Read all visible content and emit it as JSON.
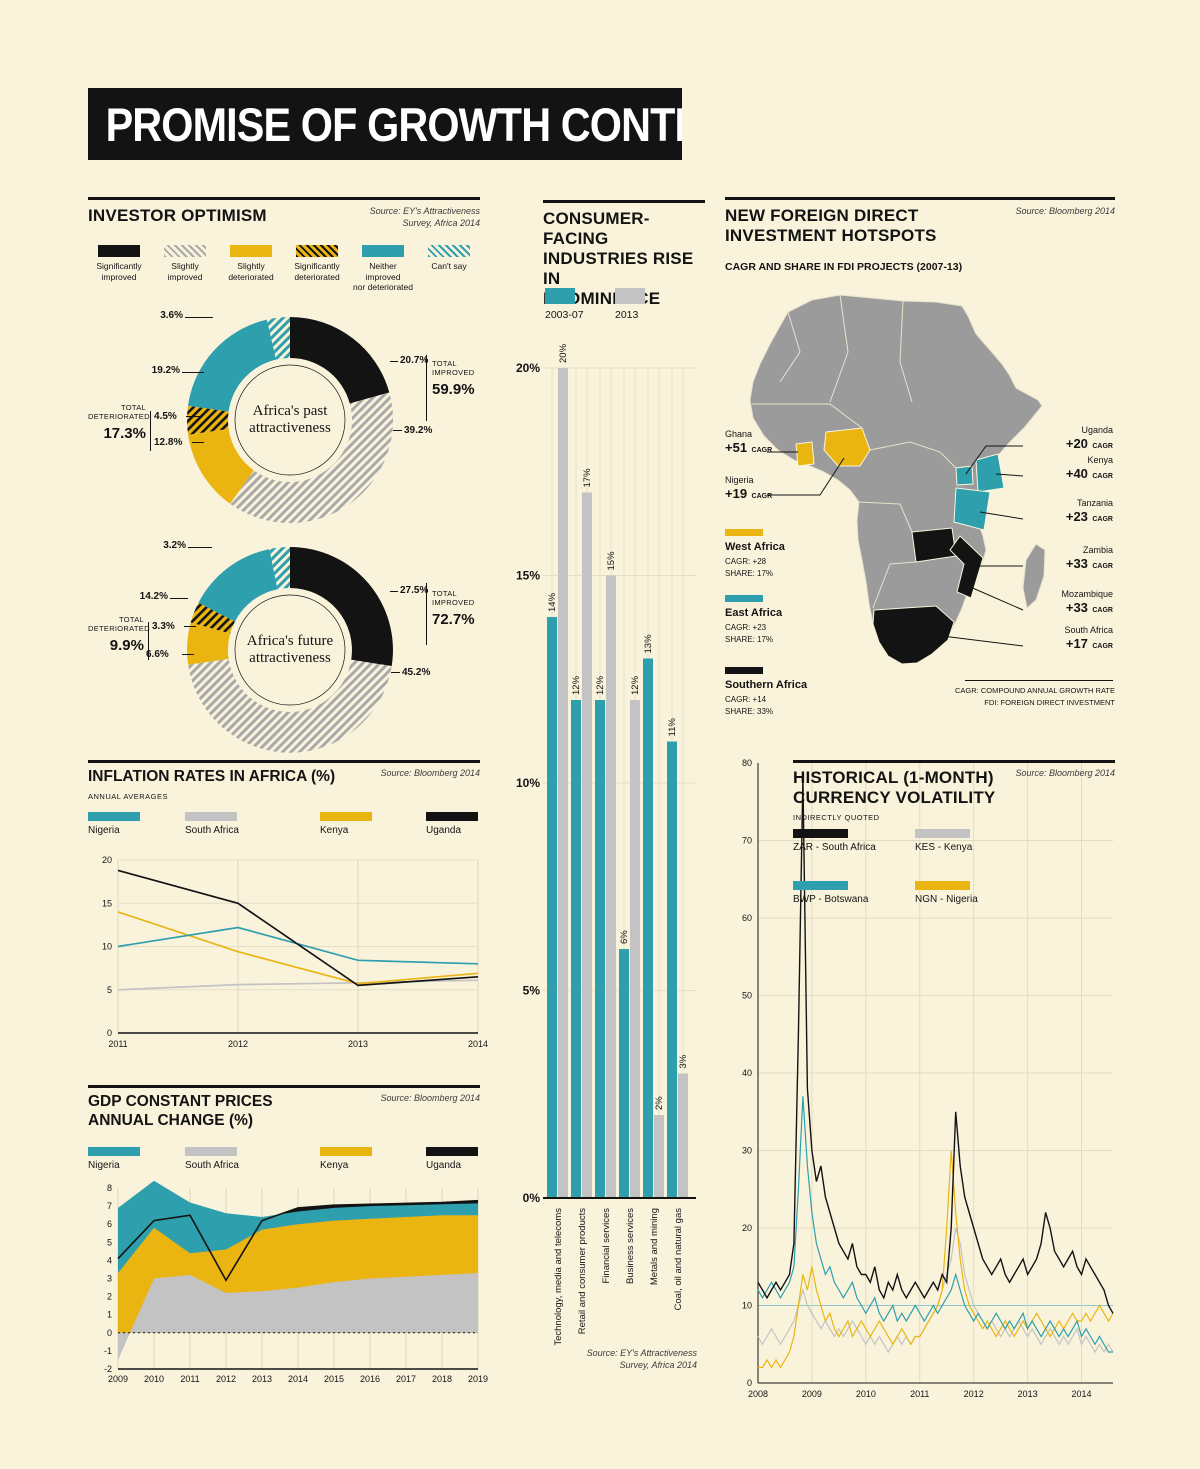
{
  "page": {
    "title": "PROMISE OF GROWTH CONTINENT"
  },
  "colors": {
    "teal": "#2d9fad",
    "yellow": "#eab511",
    "gray": "#c3c3c3",
    "black": "#131313",
    "map_gray": "#9b9b9b",
    "bg": "#faf3dc"
  },
  "investor": {
    "title": "INVESTOR OPTIMISM",
    "source_l1": "Source: EY's Attractiveness",
    "source_l2": "Survey, Africa 2014",
    "legend": [
      {
        "l1": "Significantly",
        "l2": "improved",
        "style": "black"
      },
      {
        "l1": "Slightly",
        "l2": "improved",
        "style": "gray-stripe"
      },
      {
        "l1": "Slightly",
        "l2": "deteriorated",
        "style": "yellow"
      },
      {
        "l1": "Significantly",
        "l2": "deteriorated",
        "style": "yellow-stripe"
      },
      {
        "l1": "Neither improved",
        "l2": "nor deteriorated",
        "style": "teal"
      },
      {
        "l1": "Can't say",
        "l2": "",
        "style": "teal-stripe"
      }
    ]
  },
  "consumer": {
    "title_l1": "CONSUMER-FACING",
    "title_l2": "INDUSTRIES RISE IN",
    "title_l3": "PROMINENCE",
    "legend": [
      {
        "label": "2003-07",
        "style": "teal"
      },
      {
        "label": "2013",
        "style": "gray"
      }
    ],
    "source_l1": "Source: EY's Attractiveness",
    "source_l2": "Survey, Africa 2014"
  },
  "fdi": {
    "title_l1": "NEW FOREIGN DIRECT",
    "title_l2": "INVESTMENT HOTSPOTS",
    "source": "Source: Bloomberg 2014",
    "subtitle": "CAGR AND SHARE IN FDI PROJECTS (2007-13)",
    "cagr_unit": "CAGR",
    "countries_right": [
      {
        "name": "Uganda",
        "value": "+20"
      },
      {
        "name": "Kenya",
        "value": "+40"
      },
      {
        "name": "Tanzania",
        "value": "+23"
      },
      {
        "name": "Zambia",
        "value": "+33"
      },
      {
        "name": "Mozambique",
        "value": "+33"
      },
      {
        "name": "South Africa",
        "value": "+17"
      }
    ],
    "countries_left": [
      {
        "name": "Ghana",
        "value": "+51"
      },
      {
        "name": "Nigeria",
        "value": "+19"
      }
    ],
    "regions": [
      {
        "name": "West Africa",
        "cagr": "CAGR: +28",
        "share": "SHARE: 17%",
        "style": "yellow"
      },
      {
        "name": "East Africa",
        "cagr": "CAGR: +23",
        "share": "SHARE: 17%",
        "style": "teal"
      },
      {
        "name": "Southern Africa",
        "cagr": "CAGR: +14",
        "share": "SHARE: 33%",
        "style": "black"
      }
    ],
    "footnote_l1": "CAGR: COMPOUND ANNUAL GROWTH RATE",
    "footnote_l2": "FDI: FOREIGN DIRECT INVESTMENT"
  },
  "inflation": {
    "title": "INFLATION RATES IN AFRICA (%)",
    "subtitle": "ANNUAL AVERAGES",
    "source": "Source: Bloomberg 2014",
    "legend": [
      {
        "label": "Nigeria",
        "style": "teal"
      },
      {
        "label": "South Africa",
        "style": "gray"
      },
      {
        "label": "Kenya",
        "style": "yellow"
      },
      {
        "label": "Uganda",
        "style": "black"
      }
    ]
  },
  "gdp": {
    "title_l1": "GDP CONSTANT PRICES",
    "title_l2": "ANNUAL CHANGE (%)",
    "source": "Source: Bloomberg 2014",
    "legend": [
      {
        "label": "Nigeria",
        "style": "teal"
      },
      {
        "label": "South Africa",
        "style": "gray"
      },
      {
        "label": "Kenya",
        "style": "yellow"
      },
      {
        "label": "Uganda",
        "style": "black"
      }
    ]
  },
  "fx": {
    "title_l1": "HISTORICAL (1-MONTH)",
    "title_l2": "CURRENCY VOLATILITY",
    "subtitle": "INDIRECTLY QUOTED",
    "source": "Source: Bloomberg 2014",
    "legend": [
      {
        "label": "ZAR - South Africa",
        "style": "black"
      },
      {
        "label": "KES - Kenya",
        "style": "gray"
      },
      {
        "label": "BWP - Botswana",
        "style": "teal"
      },
      {
        "label": "NGN - Nigeria",
        "style": "yellow"
      }
    ]
  },
  "chart_data": [
    {
      "id": "donut_past",
      "type": "pie",
      "title_l1": "Africa's past",
      "title_l2": "attractiveness",
      "segments": [
        {
          "label": "Significantly improved",
          "style": "black",
          "value": 20.7,
          "display": "20.7%"
        },
        {
          "label": "Slightly improved",
          "style": "gray-stripe",
          "value": 39.2,
          "display": "39.2%"
        },
        {
          "label": "Slightly deteriorated",
          "style": "yellow",
          "value": 12.8,
          "display": "12.8%"
        },
        {
          "label": "Significantly deteriorated",
          "style": "yellow-stripe",
          "value": 4.5,
          "display": "4.5%"
        },
        {
          "label": "Neither improved nor deteriorated",
          "style": "teal",
          "value": 19.2,
          "display": "19.2%"
        },
        {
          "label": "Can't say",
          "style": "teal-stripe",
          "value": 3.6,
          "display": "3.6%"
        }
      ],
      "totals": {
        "improved_l1": "TOTAL",
        "improved_l2": "IMPROVED",
        "improved_value": "59.9%",
        "det_l1": "TOTAL",
        "det_l2": "DETERIORATED",
        "det_value": "17.3%"
      }
    },
    {
      "id": "donut_future",
      "type": "pie",
      "title_l1": "Africa's future",
      "title_l2": "attractiveness",
      "segments": [
        {
          "label": "Significantly improved",
          "style": "black",
          "value": 27.5,
          "display": "27.5%"
        },
        {
          "label": "Slightly improved",
          "style": "gray-stripe",
          "value": 45.2,
          "display": "45.2%"
        },
        {
          "label": "Slightly deteriorated",
          "style": "yellow",
          "value": 6.6,
          "display": "6.6%"
        },
        {
          "label": "Significantly deteriorated",
          "style": "yellow-stripe",
          "value": 3.3,
          "display": "3.3%"
        },
        {
          "label": "Neither improved nor deteriorated",
          "style": "teal",
          "value": 14.2,
          "display": "14.2%"
        },
        {
          "label": "Can't say",
          "style": "teal-stripe",
          "value": 3.2,
          "display": "3.2%"
        }
      ],
      "totals": {
        "improved_l1": "TOTAL",
        "improved_l2": "IMPROVED",
        "improved_value": "72.7%",
        "det_l1": "TOTAL",
        "det_l2": "DETERIORATED",
        "det_value": "9.9%"
      }
    },
    {
      "id": "consumer",
      "type": "bar",
      "categories": [
        "Technology, media and telecoms",
        "Retail and consumer products",
        "Financial services",
        "Business services",
        "Metals and mining",
        "Coal, oil and natural gas"
      ],
      "series": [
        {
          "name": "2003-07",
          "color": "teal",
          "values": [
            14,
            12,
            12,
            6,
            13,
            11
          ]
        },
        {
          "name": "2013",
          "color": "gray",
          "values": [
            20,
            17,
            15,
            12,
            2,
            3
          ]
        }
      ],
      "ylim": [
        0,
        20
      ],
      "yticks": [
        {
          "v": 20,
          "label": "20%"
        },
        {
          "v": 15,
          "label": "15%"
        },
        {
          "v": 10,
          "label": "10%"
        },
        {
          "v": 5,
          "label": "5%"
        },
        {
          "v": 0,
          "label": "0%"
        }
      ]
    },
    {
      "id": "inflation",
      "type": "line",
      "x": [
        2011,
        2012,
        2013,
        2014
      ],
      "yticks": [
        20,
        15,
        10,
        5,
        0
      ],
      "ylim": [
        0,
        20
      ],
      "series": [
        {
          "name": "South Africa",
          "color": "gray",
          "values": [
            5.0,
            5.6,
            5.8,
            6.1
          ]
        },
        {
          "name": "Kenya",
          "color": "yellow",
          "values": [
            14.0,
            9.4,
            5.7,
            6.9
          ]
        },
        {
          "name": "Nigeria",
          "color": "teal",
          "values": [
            10.0,
            12.2,
            8.4,
            8.0
          ]
        },
        {
          "name": "Uganda",
          "color": "black",
          "values": [
            18.8,
            15.0,
            5.5,
            6.5
          ]
        }
      ]
    },
    {
      "id": "gdp",
      "type": "area",
      "x": [
        2009,
        2010,
        2011,
        2012,
        2013,
        2014,
        2015,
        2016,
        2017,
        2018,
        2019
      ],
      "yticks": [
        8,
        7,
        6,
        5,
        4,
        3,
        2,
        1,
        0,
        -1,
        -2
      ],
      "ylim": [
        -2,
        8
      ],
      "series": [
        {
          "name": "Uganda",
          "color": "black",
          "values": [
            4.1,
            6.2,
            6.5,
            2.9,
            6.2,
            6.9,
            7.05,
            7.1,
            7.15,
            7.2,
            7.3
          ]
        },
        {
          "name": "Nigeria",
          "color": "teal",
          "values": [
            6.9,
            8.4,
            7.2,
            6.6,
            6.4,
            6.7,
            6.9,
            7.0,
            7.05,
            7.1,
            7.15
          ]
        },
        {
          "name": "Kenya",
          "color": "yellow",
          "values": [
            3.3,
            5.8,
            4.4,
            4.6,
            5.7,
            6.0,
            6.2,
            6.3,
            6.4,
            6.5,
            6.5
          ]
        },
        {
          "name": "South Africa",
          "color": "gray",
          "values": [
            -1.5,
            3.0,
            3.2,
            2.2,
            2.3,
            2.5,
            2.8,
            3.0,
            3.1,
            3.2,
            3.3
          ]
        }
      ]
    },
    {
      "id": "fx",
      "type": "line",
      "x_years": [
        2008,
        2009,
        2010,
        2011,
        2012,
        2013,
        2014
      ],
      "yticks": [
        80,
        70,
        60,
        50,
        40,
        30,
        20,
        10,
        0
      ],
      "ylim": [
        0,
        80
      ],
      "series": [
        {
          "name": "KES",
          "color": "gray",
          "values": [
            6,
            5,
            6,
            7,
            6,
            5,
            6,
            7,
            8,
            10,
            12,
            10,
            9,
            8,
            7,
            8,
            7,
            6,
            7,
            6,
            7,
            8,
            7,
            6,
            5,
            6,
            5,
            6,
            5,
            4,
            5,
            6,
            5,
            6,
            5,
            6,
            6,
            7,
            8,
            9,
            10,
            12,
            14,
            16,
            20,
            18,
            14,
            12,
            10,
            9,
            8,
            7,
            8,
            7,
            6,
            7,
            6,
            7,
            8,
            7,
            6,
            7,
            6,
            5,
            6,
            7,
            6,
            5,
            6,
            5,
            6,
            7,
            5,
            6,
            5,
            4,
            5,
            4,
            5,
            4
          ]
        },
        {
          "name": "NGN",
          "color": "yellow",
          "values": [
            2,
            2,
            3,
            2,
            3,
            2,
            3,
            4,
            6,
            10,
            14,
            12,
            15,
            12,
            10,
            8,
            9,
            7,
            6,
            7,
            8,
            6,
            7,
            8,
            7,
            6,
            7,
            8,
            7,
            6,
            5,
            6,
            7,
            6,
            5,
            6,
            6,
            7,
            8,
            9,
            10,
            12,
            20,
            30,
            22,
            16,
            12,
            10,
            9,
            8,
            7,
            8,
            7,
            6,
            7,
            8,
            7,
            6,
            7,
            8,
            7,
            8,
            9,
            8,
            7,
            6,
            7,
            8,
            7,
            8,
            9,
            8,
            8,
            9,
            8,
            9,
            10,
            9,
            8,
            9
          ]
        },
        {
          "name": "BWP",
          "color": "teal",
          "values": [
            12,
            11,
            12,
            13,
            12,
            11,
            12,
            13,
            15,
            25,
            37,
            28,
            22,
            18,
            16,
            14,
            15,
            13,
            12,
            11,
            12,
            13,
            11,
            10,
            9,
            10,
            11,
            9,
            8,
            9,
            10,
            8,
            9,
            8,
            9,
            10,
            9,
            8,
            9,
            10,
            9,
            10,
            11,
            12,
            14,
            12,
            10,
            9,
            8,
            9,
            8,
            7,
            8,
            9,
            8,
            7,
            8,
            7,
            8,
            9,
            7,
            8,
            7,
            6,
            7,
            8,
            7,
            6,
            7,
            6,
            7,
            8,
            6,
            7,
            6,
            5,
            6,
            5,
            4,
            4
          ]
        },
        {
          "name": "ZAR",
          "color": "black",
          "values": [
            13,
            12,
            11,
            12,
            13,
            12,
            13,
            14,
            18,
            45,
            78,
            38,
            30,
            26,
            28,
            24,
            22,
            20,
            18,
            17,
            16,
            18,
            15,
            14,
            14,
            13,
            15,
            12,
            11,
            13,
            12,
            14,
            12,
            11,
            12,
            13,
            12,
            11,
            12,
            13,
            12,
            14,
            13,
            20,
            35,
            28,
            24,
            22,
            20,
            18,
            16,
            15,
            14,
            15,
            16,
            14,
            13,
            14,
            15,
            16,
            14,
            15,
            16,
            18,
            22,
            20,
            17,
            16,
            15,
            16,
            17,
            15,
            14,
            16,
            15,
            14,
            13,
            12,
            10,
            9
          ]
        }
      ]
    }
  ]
}
